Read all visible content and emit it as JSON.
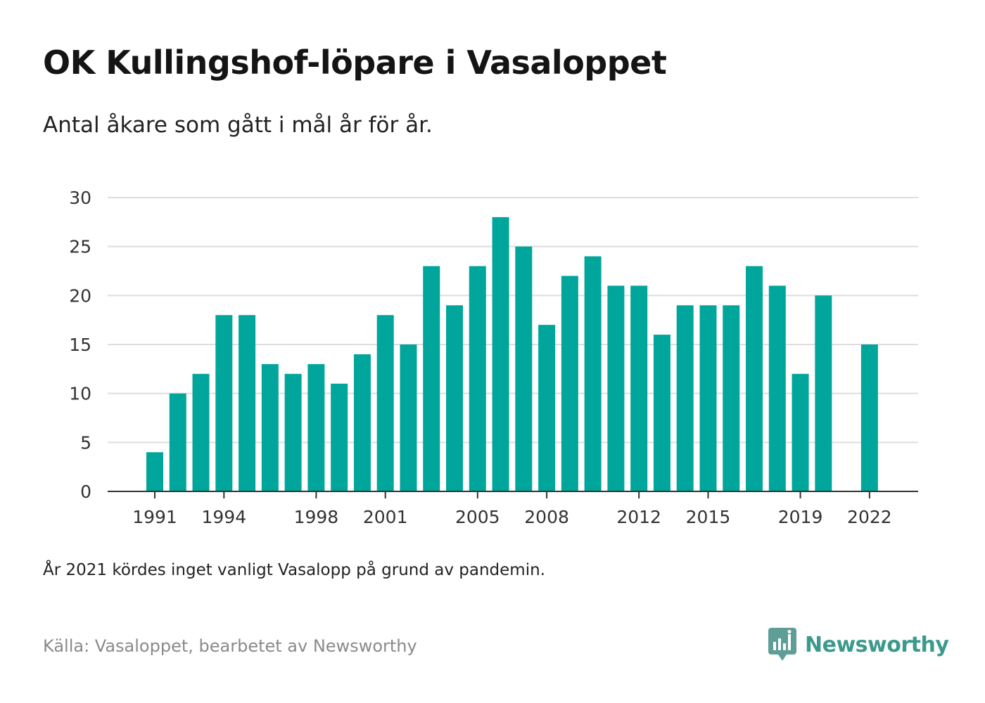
{
  "header": {
    "title": "OK Kullingshof-löpare i Vasaloppet",
    "subtitle": "Antal åkare som gått i mål år för år."
  },
  "footer": {
    "note": "År 2021 kördes inget vanligt Vasalopp på grund av pandemin.",
    "source": "Källa: Vasaloppet, bearbetet av Newsworthy",
    "brand": "Newsworthy"
  },
  "colors": {
    "bar": "#00a69b",
    "grid": "#dedede",
    "axis": "#333333",
    "brand": "#3c9a8d",
    "logo_icon": "#5e9e96"
  },
  "icons": {
    "logo": "newsworthy-logo-icon"
  },
  "chart_data": {
    "type": "bar",
    "categories": [
      1991,
      1992,
      1993,
      1994,
      1995,
      1996,
      1997,
      1998,
      1999,
      2000,
      2001,
      2002,
      2003,
      2004,
      2005,
      2006,
      2007,
      2008,
      2009,
      2010,
      2011,
      2012,
      2013,
      2014,
      2015,
      2016,
      2017,
      2018,
      2019,
      2020,
      2021,
      2022
    ],
    "values": [
      4,
      10,
      12,
      18,
      18,
      13,
      12,
      13,
      11,
      14,
      18,
      15,
      23,
      19,
      23,
      28,
      25,
      17,
      22,
      24,
      21,
      21,
      16,
      19,
      19,
      19,
      23,
      21,
      12,
      20,
      null,
      15
    ],
    "x_tick_labels": [
      "1991",
      "1994",
      "1998",
      "2001",
      "2005",
      "2008",
      "2012",
      "2015",
      "2019",
      "2022"
    ],
    "y_ticks": [
      0,
      5,
      10,
      15,
      20,
      25,
      30
    ],
    "ylim": [
      0,
      30
    ],
    "grid": true,
    "legend": "none"
  }
}
